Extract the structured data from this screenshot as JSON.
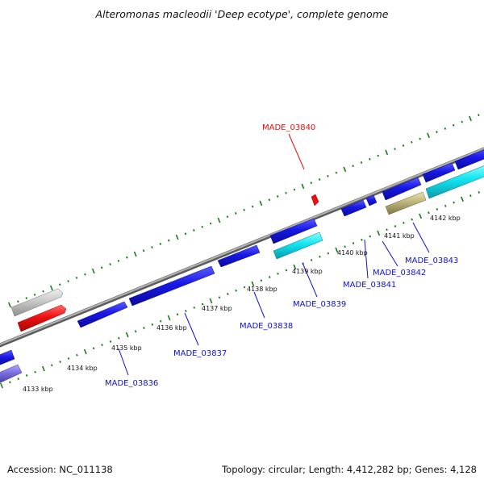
{
  "title": "Alteromonas macleodii 'Deep ecotype', complete genome",
  "footer": {
    "accession": "Accession: NC_011138",
    "summary": "Topology: circular; Length: 4,412,282 bp; Genes: 4,128"
  },
  "colors": {
    "backbone": "#8a8a8a",
    "tick": "#1a7a1a",
    "gene_default": "#1414e6",
    "label_default": "#1010d0",
    "label_highlight": "#e01010"
  },
  "kbp_ticks": [
    "4133 kbp",
    "4134 kbp",
    "4135 kbp",
    "4136 kbp",
    "4137 kbp",
    "4138 kbp",
    "4139 kbp",
    "4140 kbp",
    "4141 kbp",
    "4142 kbp"
  ],
  "gene_labels": [
    {
      "text": "MADE_03836",
      "highlight": false
    },
    {
      "text": "MADE_03837",
      "highlight": false
    },
    {
      "text": "MADE_03838",
      "highlight": false
    },
    {
      "text": "MADE_03839",
      "highlight": false
    },
    {
      "text": "MADE_03840",
      "highlight": true
    },
    {
      "text": "MADE_03841",
      "highlight": false
    },
    {
      "text": "MADE_03842",
      "highlight": false
    },
    {
      "text": "MADE_03843",
      "highlight": false
    }
  ]
}
